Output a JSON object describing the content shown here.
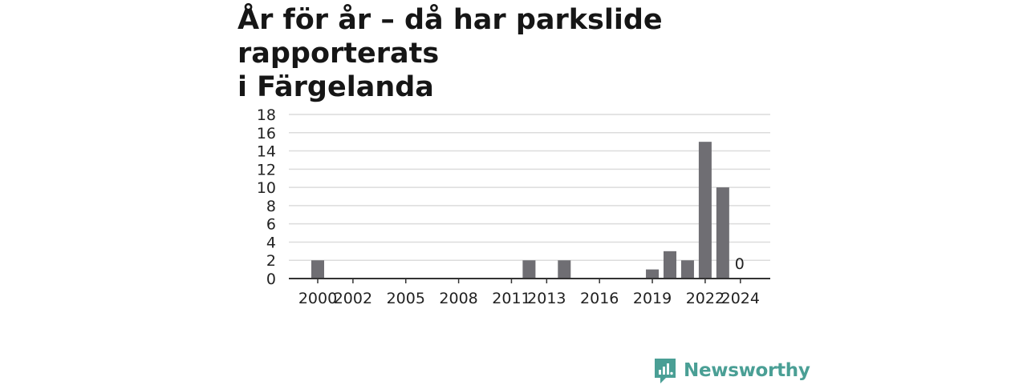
{
  "title_lines": [
    "År för år – då har parkslide rapporterats",
    "i Färgelanda"
  ],
  "brand": {
    "name": "Newsworthy",
    "icon": "newsworthy-logo-icon",
    "color": "#4a9f95"
  },
  "colors": {
    "bar": "#6f6e73",
    "grid": "#dcdcdc",
    "axis": "#333333",
    "text": "#222222"
  },
  "chart_data": {
    "type": "bar",
    "title": "År för år – då har parkslide rapporterats i Färgelanda",
    "xlabel": "",
    "ylabel": "",
    "categories": [
      "2000",
      "2001",
      "2002",
      "2003",
      "2004",
      "2005",
      "2006",
      "2007",
      "2008",
      "2009",
      "2010",
      "2011",
      "2012",
      "2013",
      "2014",
      "2015",
      "2016",
      "2017",
      "2018",
      "2019",
      "2020",
      "2021",
      "2022",
      "2023",
      "2024"
    ],
    "values": [
      2,
      0,
      0,
      0,
      0,
      0,
      0,
      0,
      0,
      0,
      0,
      0,
      2,
      0,
      2,
      0,
      0,
      0,
      0,
      1,
      3,
      2,
      15,
      10,
      0
    ],
    "x_tick_labels": [
      "2000",
      "2002",
      "2005",
      "2008",
      "2011",
      "2013",
      "2016",
      "2019",
      "2022",
      "2024"
    ],
    "y_ticks": [
      0,
      2,
      4,
      6,
      8,
      10,
      12,
      14,
      16,
      18
    ],
    "ylim": [
      0,
      18
    ],
    "grid": true,
    "annotations": [
      {
        "category": "2024",
        "text": "0"
      }
    ]
  }
}
